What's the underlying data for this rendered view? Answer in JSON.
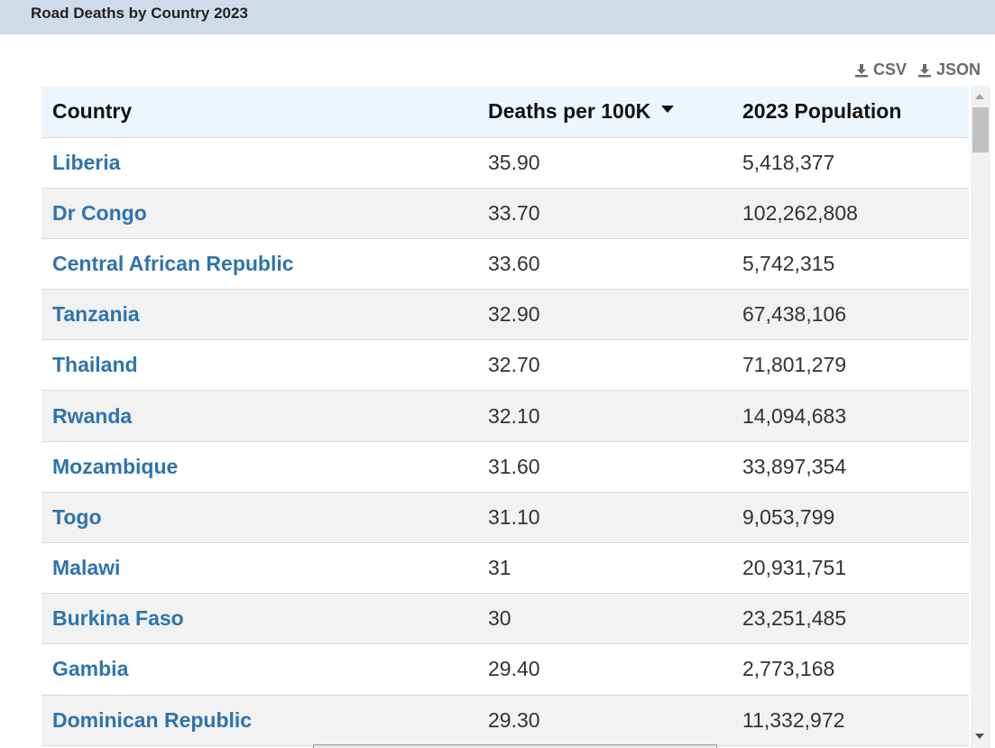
{
  "header": {
    "title": "Road Deaths by Country 2023"
  },
  "downloads": [
    {
      "label": "CSV",
      "icon": "download-icon"
    },
    {
      "label": "JSON",
      "icon": "download-icon"
    }
  ],
  "table": {
    "columns": [
      "Country",
      "Deaths per 100K",
      "2023 Population"
    ],
    "sort": {
      "column": "Deaths per 100K",
      "direction": "descending"
    },
    "rows": [
      {
        "country": "Liberia",
        "deaths": "35.90",
        "population": "5,418,377"
      },
      {
        "country": "Dr Congo",
        "deaths": "33.70",
        "population": "102,262,808"
      },
      {
        "country": "Central African Republic",
        "deaths": "33.60",
        "population": "5,742,315"
      },
      {
        "country": "Tanzania",
        "deaths": "32.90",
        "population": "67,438,106"
      },
      {
        "country": "Thailand",
        "deaths": "32.70",
        "population": "71,801,279"
      },
      {
        "country": "Rwanda",
        "deaths": "32.10",
        "population": "14,094,683"
      },
      {
        "country": "Mozambique",
        "deaths": "31.60",
        "population": "33,897,354"
      },
      {
        "country": "Togo",
        "deaths": "31.10",
        "population": "9,053,799"
      },
      {
        "country": "Malawi",
        "deaths": "31",
        "population": "20,931,751"
      },
      {
        "country": "Burkina Faso",
        "deaths": "30",
        "population": "23,251,485"
      },
      {
        "country": "Gambia",
        "deaths": "29.40",
        "population": "2,773,168"
      },
      {
        "country": "Dominican Republic",
        "deaths": "29.30",
        "population": "11,332,972"
      }
    ]
  }
}
